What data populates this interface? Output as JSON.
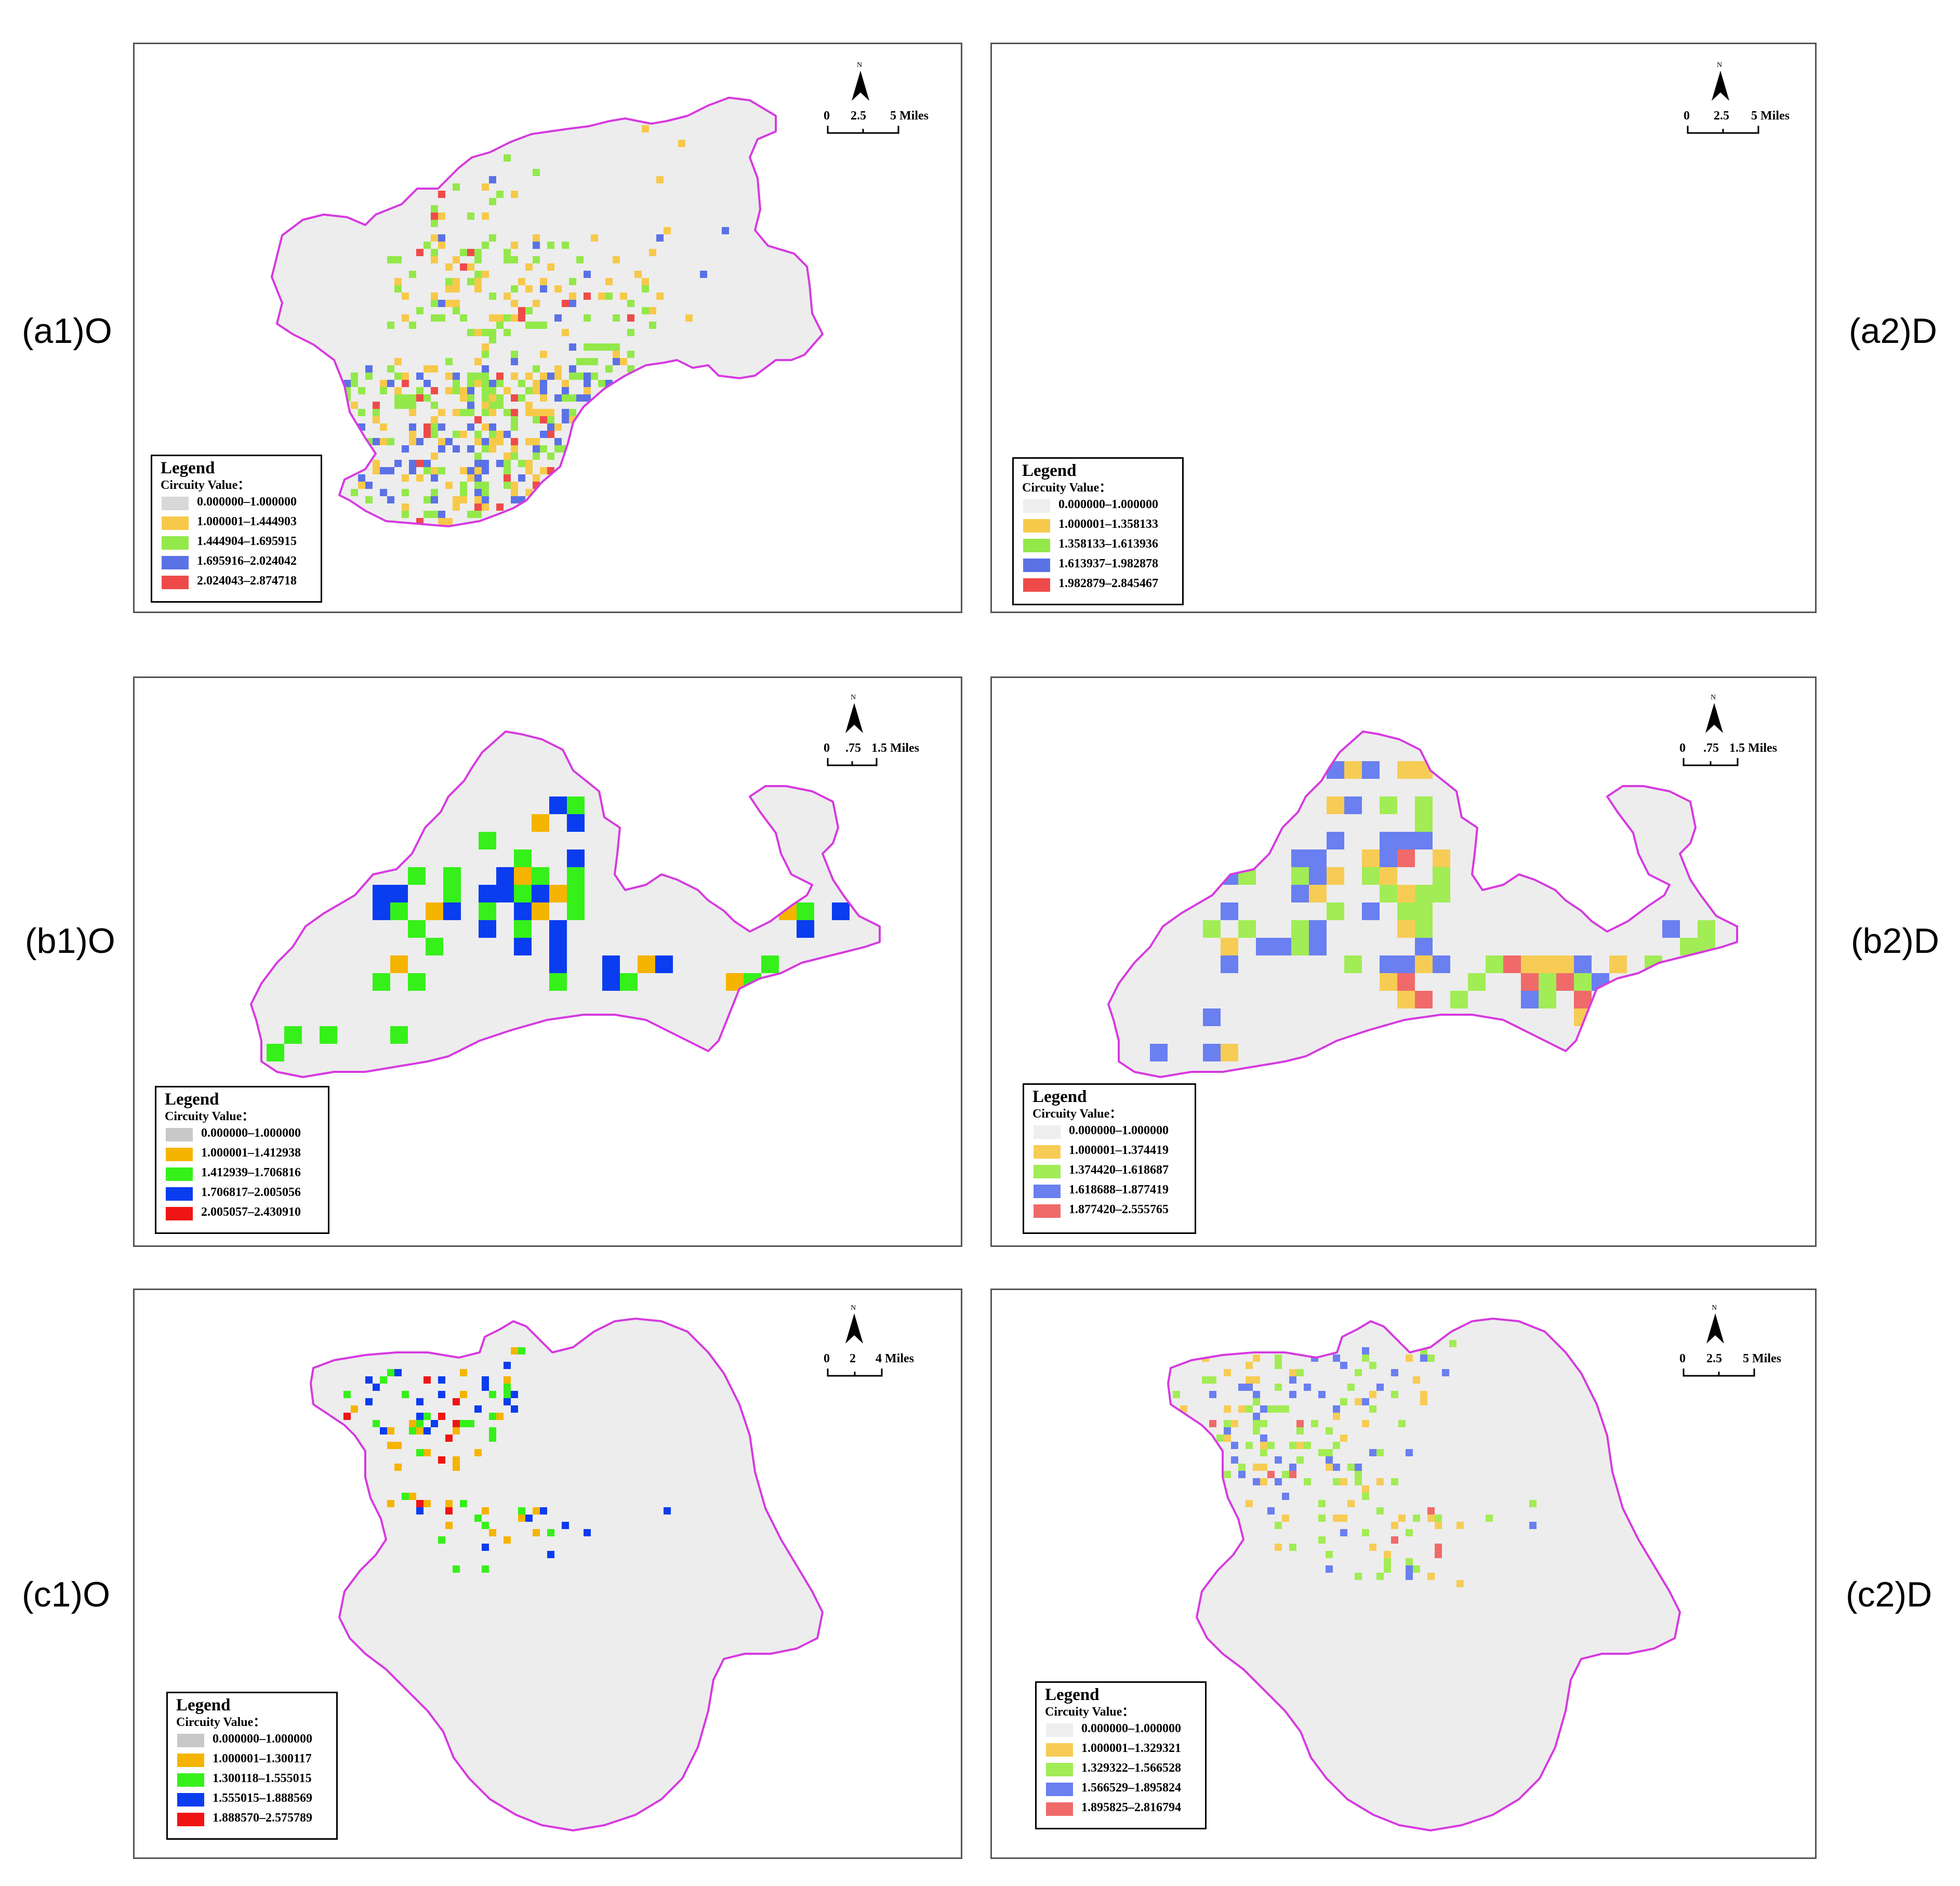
{
  "row_labels": [
    "(a1)O",
    "(a2)D",
    "(b1)O",
    "(b2)D",
    "(c1)O",
    "(c2)D"
  ],
  "legend_title": "Legend",
  "legend_subtitle": "Circuity Value：",
  "north_letter": "N",
  "panels": [
    {
      "id": "a1",
      "scale_labels": [
        "0",
        "2.5",
        "5 Miles"
      ],
      "colors": [
        "#d8d8d8",
        "#f7c94a",
        "#93e84a",
        "#5b72e6",
        "#ef4a4a"
      ],
      "legend_items": [
        "0.000000–1.000000",
        "1.000001–1.444903",
        "1.444904–1.695915",
        "1.695916–2.024042",
        "2.024043–2.874718"
      ]
    },
    {
      "id": "a2",
      "scale_labels": [
        "0",
        "2.5",
        "5 Miles"
      ],
      "colors": [
        "#eeeeee",
        "#f7c94a",
        "#93e84a",
        "#5b72e6",
        "#ef4a4a"
      ],
      "legend_items": [
        "0.000000–1.000000",
        "1.000001–1.358133",
        "1.358133–1.613936",
        "1.613937–1.982878",
        "1.982879–2.845467"
      ]
    },
    {
      "id": "b1",
      "scale_labels": [
        "0",
        ".75",
        "1.5 Miles"
      ],
      "colors": [
        "#c8c8c8",
        "#f5b400",
        "#36f01a",
        "#0a3cf0",
        "#f01414"
      ],
      "legend_items": [
        "0.000000–1.000000",
        "1.000001–1.412938",
        "1.412939–1.706816",
        "1.706817–2.005056",
        "2.005057–2.430910"
      ]
    },
    {
      "id": "b2",
      "scale_labels": [
        "0",
        ".75",
        "1.5 Miles"
      ],
      "colors": [
        "#eeeeee",
        "#f7cc55",
        "#a2ec55",
        "#6a7ff0",
        "#f06a6a"
      ],
      "legend_items": [
        "0.000000–1.000000",
        "1.000001–1.374419",
        "1.374420–1.618687",
        "1.618688–1.877419",
        "1.877420–2.555765"
      ]
    },
    {
      "id": "c1",
      "scale_labels": [
        "0",
        "2",
        "4 Miles"
      ],
      "colors": [
        "#c8c8c8",
        "#f5b400",
        "#36f01a",
        "#0a3cf0",
        "#f01414"
      ],
      "legend_items": [
        "0.000000–1.000000",
        "1.000001–1.300117",
        "1.300118–1.555015",
        "1.555015–1.888569",
        "1.888570–2.575789"
      ]
    },
    {
      "id": "c2",
      "scale_labels": [
        "0",
        "2.5",
        "5 Miles"
      ],
      "colors": [
        "#eeeeee",
        "#f7cc55",
        "#a2ec55",
        "#6a7ff0",
        "#f06a6a"
      ],
      "legend_items": [
        "0.000000–1.000000",
        "1.000001–1.329321",
        "1.329322–1.566528",
        "1.566529–1.895824",
        "1.895825–2.816794"
      ]
    }
  ],
  "region_fill": "#ededed",
  "boundary_color": "#d63ae0"
}
